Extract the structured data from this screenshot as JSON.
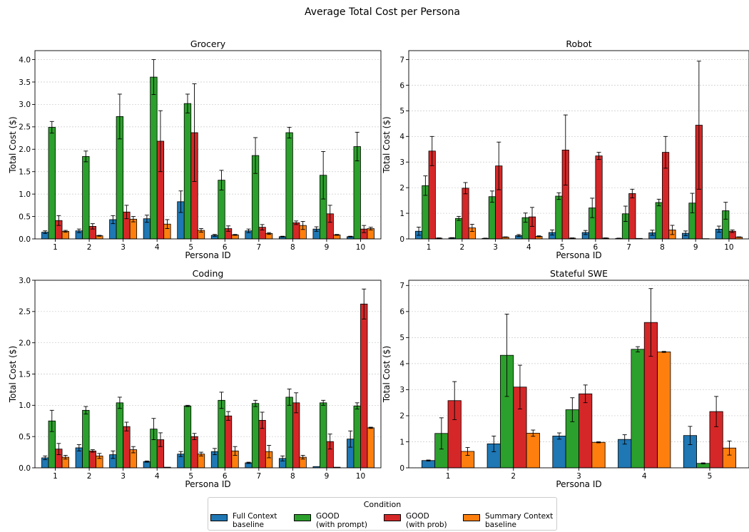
{
  "figure": {
    "title": "Average Total Cost per Persona"
  },
  "colors": {
    "Full Context\nbaseline": "#1f77b4",
    "GOOD\n(with prompt)": "#2ca02c",
    "GOOD\n(with prob)": "#d62728",
    "Summary Context\nbaseline": "#ff7f0e"
  },
  "legend": {
    "title": "Condition",
    "items": [
      "Full Context\nbaseline",
      "GOOD\n(with prompt)",
      "GOOD\n(with prob)",
      "Summary Context\nbaseline"
    ]
  },
  "chart_data": [
    {
      "type": "bar",
      "title": "Grocery",
      "xlabel": "Persona ID",
      "ylabel": "Total Cost ($)",
      "ylim": [
        0,
        4.2
      ],
      "yticks": [
        0.0,
        0.5,
        1.0,
        1.5,
        2.0,
        2.5,
        3.0,
        3.5,
        4.0
      ],
      "ytick_decimals": 1,
      "grid": "y-dotted",
      "categories": [
        "1",
        "2",
        "3",
        "4",
        "5",
        "6",
        "7",
        "8",
        "9",
        "10"
      ],
      "series": [
        {
          "name": "Full Context\nbaseline",
          "values": [
            0.15,
            0.18,
            0.43,
            0.45,
            0.83,
            0.08,
            0.18,
            0.05,
            0.22,
            0.05
          ],
          "errors": [
            0.03,
            0.04,
            0.09,
            0.08,
            0.24,
            0.02,
            0.04,
            0.01,
            0.05,
            0.01
          ]
        },
        {
          "name": "GOOD\n(with prompt)",
          "values": [
            2.49,
            1.84,
            2.73,
            3.61,
            3.02,
            1.31,
            1.86,
            2.37,
            1.42,
            2.06
          ],
          "errors": [
            0.13,
            0.12,
            0.5,
            0.39,
            0.21,
            0.22,
            0.4,
            0.12,
            0.53,
            0.32
          ]
        },
        {
          "name": "GOOD\n(with prob)",
          "values": [
            0.41,
            0.28,
            0.6,
            2.18,
            2.37,
            0.23,
            0.26,
            0.36,
            0.56,
            0.22
          ],
          "errors": [
            0.11,
            0.06,
            0.15,
            0.68,
            1.09,
            0.06,
            0.06,
            0.04,
            0.19,
            0.08
          ]
        },
        {
          "name": "Summary Context\nbaseline",
          "values": [
            0.17,
            0.07,
            0.44,
            0.33,
            0.19,
            0.09,
            0.12,
            0.3,
            0.09,
            0.23
          ],
          "errors": [
            0.02,
            0.01,
            0.06,
            0.1,
            0.04,
            0.01,
            0.02,
            0.09,
            0.01,
            0.03
          ]
        }
      ]
    },
    {
      "type": "bar",
      "title": "Robot",
      "xlabel": "Persona ID",
      "ylabel": "Total Cost ($)",
      "ylim": [
        0,
        7.35
      ],
      "yticks": [
        0,
        1,
        2,
        3,
        4,
        5,
        6,
        7
      ],
      "ytick_decimals": 0,
      "grid": "y-dotted",
      "categories": [
        "1",
        "2",
        "3",
        "4",
        "5",
        "6",
        "7",
        "8",
        "9",
        "10"
      ],
      "series": [
        {
          "name": "Full Context\nbaseline",
          "values": [
            0.3,
            0.04,
            0.02,
            0.13,
            0.25,
            0.25,
            0.02,
            0.24,
            0.22,
            0.38
          ],
          "errors": [
            0.16,
            0.01,
            0.01,
            0.04,
            0.1,
            0.08,
            0.01,
            0.1,
            0.09,
            0.12
          ]
        },
        {
          "name": "GOOD\n(with prompt)",
          "values": [
            2.08,
            0.8,
            1.65,
            0.83,
            1.67,
            1.21,
            0.98,
            1.42,
            1.4,
            1.1
          ],
          "errors": [
            0.38,
            0.08,
            0.22,
            0.18,
            0.13,
            0.38,
            0.3,
            0.13,
            0.38,
            0.33
          ]
        },
        {
          "name": "GOOD\n(with prob)",
          "values": [
            3.43,
            1.98,
            2.85,
            0.86,
            3.47,
            3.24,
            1.77,
            3.38,
            4.44,
            0.3
          ],
          "errors": [
            0.57,
            0.22,
            0.93,
            0.37,
            1.37,
            0.14,
            0.17,
            0.62,
            2.5,
            0.05
          ]
        },
        {
          "name": "Summary Context\nbaseline",
          "values": [
            0.03,
            0.43,
            0.07,
            0.1,
            0.03,
            0.03,
            0.02,
            0.35,
            0.01,
            0.07
          ],
          "errors": [
            0.01,
            0.14,
            0.01,
            0.02,
            0.01,
            0.01,
            0.0,
            0.18,
            0.0,
            0.01
          ]
        }
      ]
    },
    {
      "type": "bar",
      "title": "Coding",
      "xlabel": "Persona ID",
      "ylabel": "Total Cost ($)",
      "ylim": [
        0,
        3.0
      ],
      "yticks": [
        0.0,
        0.5,
        1.0,
        1.5,
        2.0,
        2.5,
        3.0
      ],
      "ytick_decimals": 1,
      "grid": "y-dotted",
      "categories": [
        "1",
        "2",
        "3",
        "4",
        "5",
        "6",
        "7",
        "8",
        "9",
        "10"
      ],
      "series": [
        {
          "name": "Full Context\nbaseline",
          "values": [
            0.16,
            0.32,
            0.21,
            0.1,
            0.22,
            0.26,
            0.08,
            0.15,
            0.02,
            0.46
          ],
          "errors": [
            0.03,
            0.05,
            0.06,
            0.01,
            0.04,
            0.05,
            0.01,
            0.04,
            0.0,
            0.13
          ]
        },
        {
          "name": "GOOD\n(with prompt)",
          "values": [
            0.75,
            0.92,
            1.04,
            0.62,
            0.99,
            1.08,
            1.03,
            1.13,
            1.04,
            0.99
          ],
          "errors": [
            0.17,
            0.06,
            0.09,
            0.17,
            0.01,
            0.13,
            0.05,
            0.13,
            0.04,
            0.05
          ]
        },
        {
          "name": "GOOD\n(with prob)",
          "values": [
            0.3,
            0.27,
            0.66,
            0.45,
            0.5,
            0.83,
            0.76,
            1.04,
            0.42,
            2.62
          ],
          "errors": [
            0.09,
            0.02,
            0.07,
            0.11,
            0.05,
            0.07,
            0.13,
            0.16,
            0.12,
            0.24
          ]
        },
        {
          "name": "Summary Context\nbaseline",
          "values": [
            0.17,
            0.19,
            0.29,
            0.01,
            0.22,
            0.27,
            0.26,
            0.17,
            0.01,
            0.64
          ],
          "errors": [
            0.03,
            0.04,
            0.05,
            0.0,
            0.03,
            0.07,
            0.1,
            0.03,
            0.0,
            0.01
          ]
        }
      ]
    },
    {
      "type": "bar",
      "title": "Stateful SWE",
      "xlabel": "Persona ID",
      "ylabel": "Total Cost ($)",
      "ylim": [
        0,
        7.2
      ],
      "yticks": [
        0,
        1,
        2,
        3,
        4,
        5,
        6,
        7
      ],
      "ytick_decimals": 0,
      "grid": "y-dotted",
      "categories": [
        "1",
        "2",
        "3",
        "4",
        "5"
      ],
      "series": [
        {
          "name": "Full Context\nbaseline",
          "values": [
            0.28,
            0.92,
            1.22,
            1.09,
            1.24
          ],
          "errors": [
            0.02,
            0.3,
            0.12,
            0.18,
            0.35
          ]
        },
        {
          "name": "GOOD\n(with prompt)",
          "values": [
            1.32,
            4.32,
            2.23,
            4.55,
            0.17
          ],
          "errors": [
            0.6,
            1.58,
            0.46,
            0.1,
            0.02
          ]
        },
        {
          "name": "GOOD\n(with prob)",
          "values": [
            2.58,
            3.1,
            2.84,
            5.58,
            2.16
          ],
          "errors": [
            0.73,
            0.84,
            0.34,
            1.3,
            0.58
          ]
        },
        {
          "name": "Summary Context\nbaseline",
          "values": [
            0.63,
            1.33,
            0.98,
            4.45,
            0.76
          ],
          "errors": [
            0.15,
            0.12,
            0.02,
            0.02,
            0.27
          ]
        }
      ]
    }
  ]
}
